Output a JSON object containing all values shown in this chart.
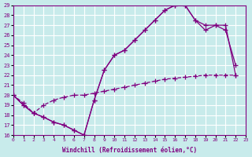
{
  "xlabel": "Windchill (Refroidissement éolien,°C)",
  "bg_color": "#c8ebeb",
  "line_color": "#800080",
  "grid_color": "#ffffff",
  "xlim": [
    0,
    23
  ],
  "ylim": [
    16,
    29
  ],
  "xticks": [
    0,
    1,
    2,
    3,
    4,
    5,
    6,
    7,
    8,
    9,
    10,
    11,
    12,
    13,
    14,
    15,
    16,
    17,
    18,
    19,
    20,
    21,
    22,
    23
  ],
  "yticks": [
    16,
    17,
    18,
    19,
    20,
    21,
    22,
    23,
    24,
    25,
    26,
    27,
    28,
    29
  ],
  "line1_x": [
    0,
    1,
    2,
    3,
    4,
    5,
    6,
    7,
    8,
    9,
    10,
    11,
    12,
    13,
    14,
    15,
    16,
    17,
    18,
    19,
    20,
    21,
    22
  ],
  "line1_y": [
    20,
    19,
    18.2,
    17.8,
    17.3,
    17.0,
    16.5,
    16.0,
    19.5,
    22.5,
    24.0,
    24.5,
    25.5,
    26.5,
    27.5,
    28.5,
    29.0,
    29.0,
    27.5,
    26.5,
    27.0,
    26.5,
    23.0
  ],
  "line2_x": [
    0,
    1,
    2,
    3,
    4,
    5,
    6,
    7,
    8,
    9,
    10,
    11,
    12,
    13,
    14,
    15,
    16,
    17,
    18,
    19,
    20,
    21,
    22
  ],
  "line2_y": [
    20,
    19,
    18.2,
    17.8,
    17.3,
    17.0,
    16.5,
    16.0,
    19.5,
    22.5,
    24.0,
    24.5,
    25.5,
    26.5,
    27.5,
    28.5,
    29.0,
    29.0,
    27.5,
    27.0,
    27.0,
    27.0,
    22.0
  ],
  "line3_x": [
    0,
    1,
    2,
    3,
    4,
    5,
    6,
    7,
    8,
    9,
    10,
    11,
    12,
    13,
    14,
    15,
    16,
    17,
    18,
    19,
    20,
    21,
    22
  ],
  "line3_y": [
    20.0,
    19.2,
    18.2,
    19.0,
    19.5,
    19.8,
    20.0,
    20.0,
    20.2,
    20.4,
    20.6,
    20.8,
    21.0,
    21.2,
    21.4,
    21.6,
    21.7,
    21.8,
    21.9,
    22.0,
    22.0,
    22.0,
    22.0
  ]
}
